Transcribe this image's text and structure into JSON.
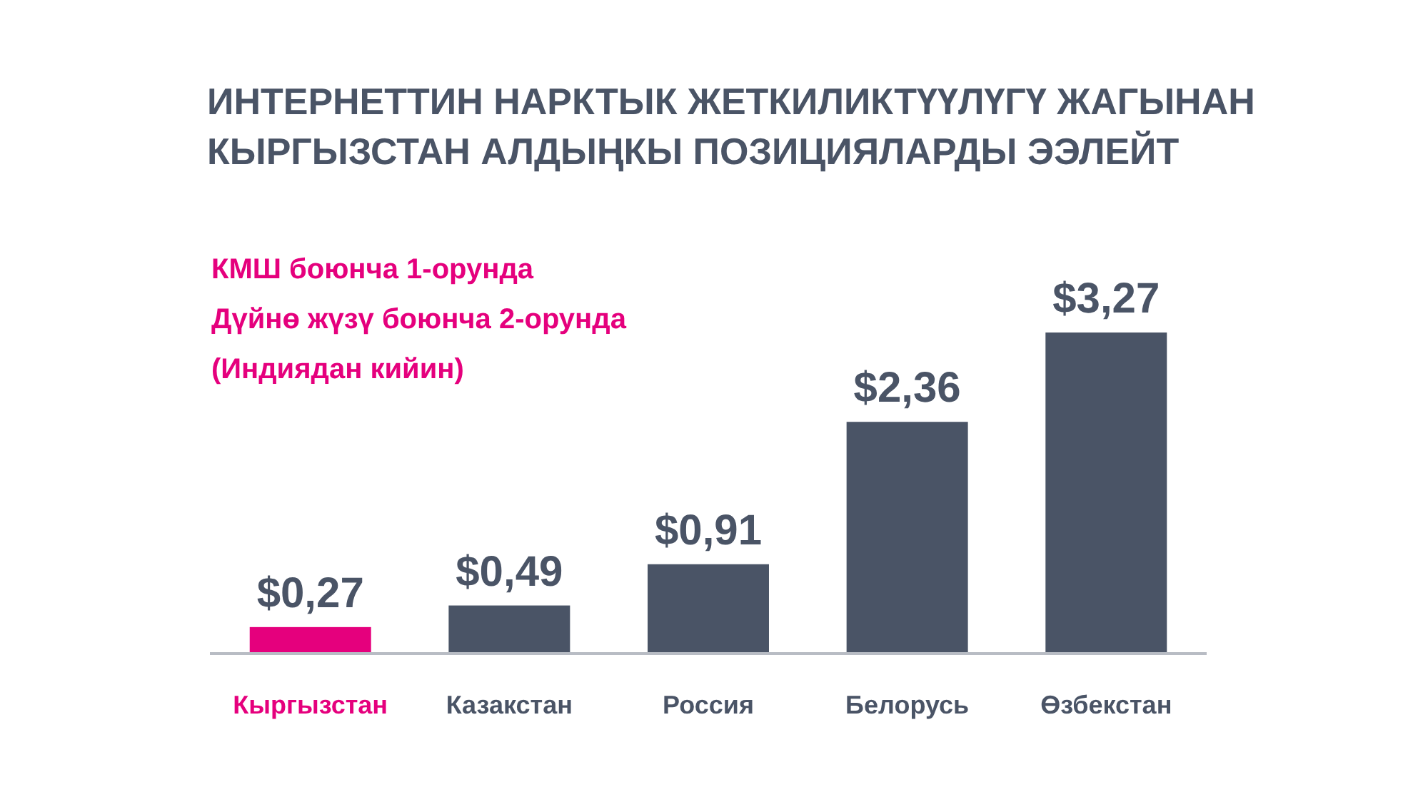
{
  "chart_data": {
    "type": "bar",
    "title": "ИНТЕРНЕТТИН НАРКТЫК ЖЕТКИЛИКТҮҮЛҮГҮ ЖАГЫНАН\nКЫРГЫЗСТАН АЛДЫҢКЫ ПОЗИЦИЯЛАРДЫ ЭЭЛЕЙТ",
    "annotations": [
      "КМШ боюнча 1-орунда",
      "Дүйнө жүзү боюнча 2-орунда",
      "(Индиядан кийин)"
    ],
    "categories": [
      "Кыргызстан",
      "Казакстан",
      "Россия",
      "Белорусь",
      "Өзбекстан"
    ],
    "values": [
      0.27,
      0.49,
      0.91,
      2.36,
      3.27
    ],
    "value_labels": [
      "$0,27",
      "$0,49",
      "$0,91",
      "$2,36",
      "$3,27"
    ],
    "colors": [
      "#e5007d",
      "#4a5466",
      "#4a5466",
      "#4a5466",
      "#4a5466"
    ]
  }
}
